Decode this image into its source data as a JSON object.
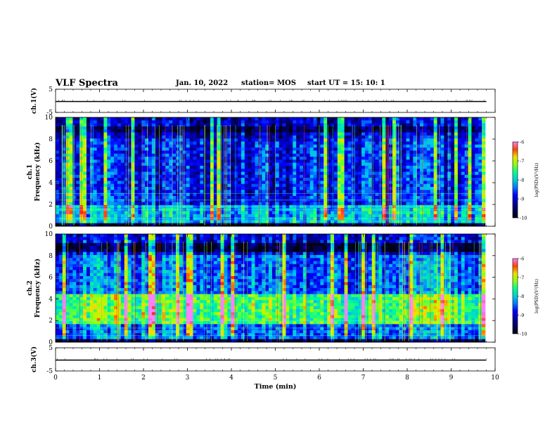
{
  "header": {
    "title": "VLF Spectra",
    "date": "Jan. 10, 2022",
    "station": "station= MOS",
    "start": "start  UT  =   15: 10: 1"
  },
  "chart_data": [
    {
      "type": "line",
      "title": "",
      "ylabel": "ch.1(V)",
      "ylim": [
        -5,
        5
      ],
      "yticks": [
        "5",
        "-5"
      ],
      "xlim": [
        0,
        10
      ],
      "series": [
        {
          "x": [
            0,
            9.8
          ],
          "y": [
            0,
            0
          ]
        }
      ]
    },
    {
      "type": "heatmap",
      "ylabel_top": "ch.1",
      "ylabel": "Frequency (kHz)",
      "ylim": [
        0,
        10
      ],
      "yticks": [
        "0",
        "2",
        "4",
        "6",
        "8",
        "10"
      ],
      "xlim": [
        0,
        10
      ],
      "colorbar": {
        "label": "log(PSD)(V²/Hz)",
        "range": [
          -10,
          -6
        ],
        "ticks": [
          "-6",
          "-7",
          "-8",
          "-9",
          "-10"
        ]
      },
      "colors": [
        "#000000",
        "#00008b",
        "#0000ff",
        "#00c8ff",
        "#00ff80",
        "#ffff00",
        "#ff0000",
        "#ffffff"
      ]
    },
    {
      "type": "heatmap",
      "ylabel_top": "ch.2",
      "ylabel": "Frequency (kHz)",
      "ylim": [
        0,
        10
      ],
      "yticks": [
        "0",
        "2",
        "4",
        "6",
        "8",
        "10"
      ],
      "xlim": [
        0,
        10
      ],
      "colorbar": {
        "label": "log(PSD)(V²/Hz)",
        "range": [
          -10,
          -6
        ],
        "ticks": [
          "-6",
          "-7",
          "-8",
          "-9",
          "-10"
        ]
      }
    },
    {
      "type": "line",
      "ylabel": "ch.3(V)",
      "ylim": [
        -5,
        5
      ],
      "yticks": [
        "5",
        "-5"
      ],
      "xlabel": "Time (min)",
      "xlim": [
        0,
        10
      ],
      "xticks": [
        "0",
        "1",
        "2",
        "3",
        "4",
        "5",
        "6",
        "7",
        "8",
        "9",
        "10"
      ],
      "series": [
        {
          "x": [
            0,
            9.8
          ],
          "y": [
            0,
            0
          ]
        }
      ]
    }
  ]
}
